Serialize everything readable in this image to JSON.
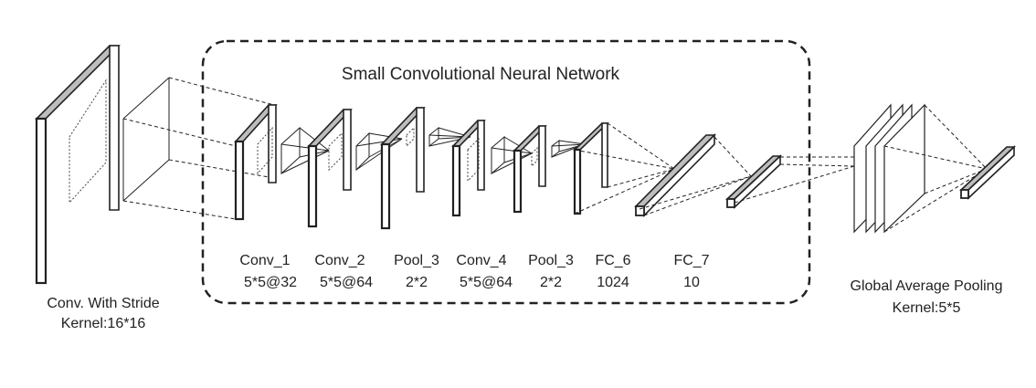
{
  "title": "Small Convolutional Neural Network",
  "input_block": {
    "line1": "Conv. With Stride",
    "line2": "Kernel:16*16"
  },
  "layers": [
    {
      "name": "Conv_1",
      "param": "5*5@32"
    },
    {
      "name": "Conv_2",
      "param": "5*5@64"
    },
    {
      "name": "Pool_3",
      "param": "2*2"
    },
    {
      "name": "Conv_4",
      "param": "5*5@64"
    },
    {
      "name": "Pool_3",
      "param": "2*2"
    },
    {
      "name": "FC_6",
      "param": "1024"
    },
    {
      "name": "FC_7",
      "param": "10"
    }
  ],
  "output_block": {
    "line1": "Global Average Pooling",
    "line2": "Kernel:5*5"
  }
}
